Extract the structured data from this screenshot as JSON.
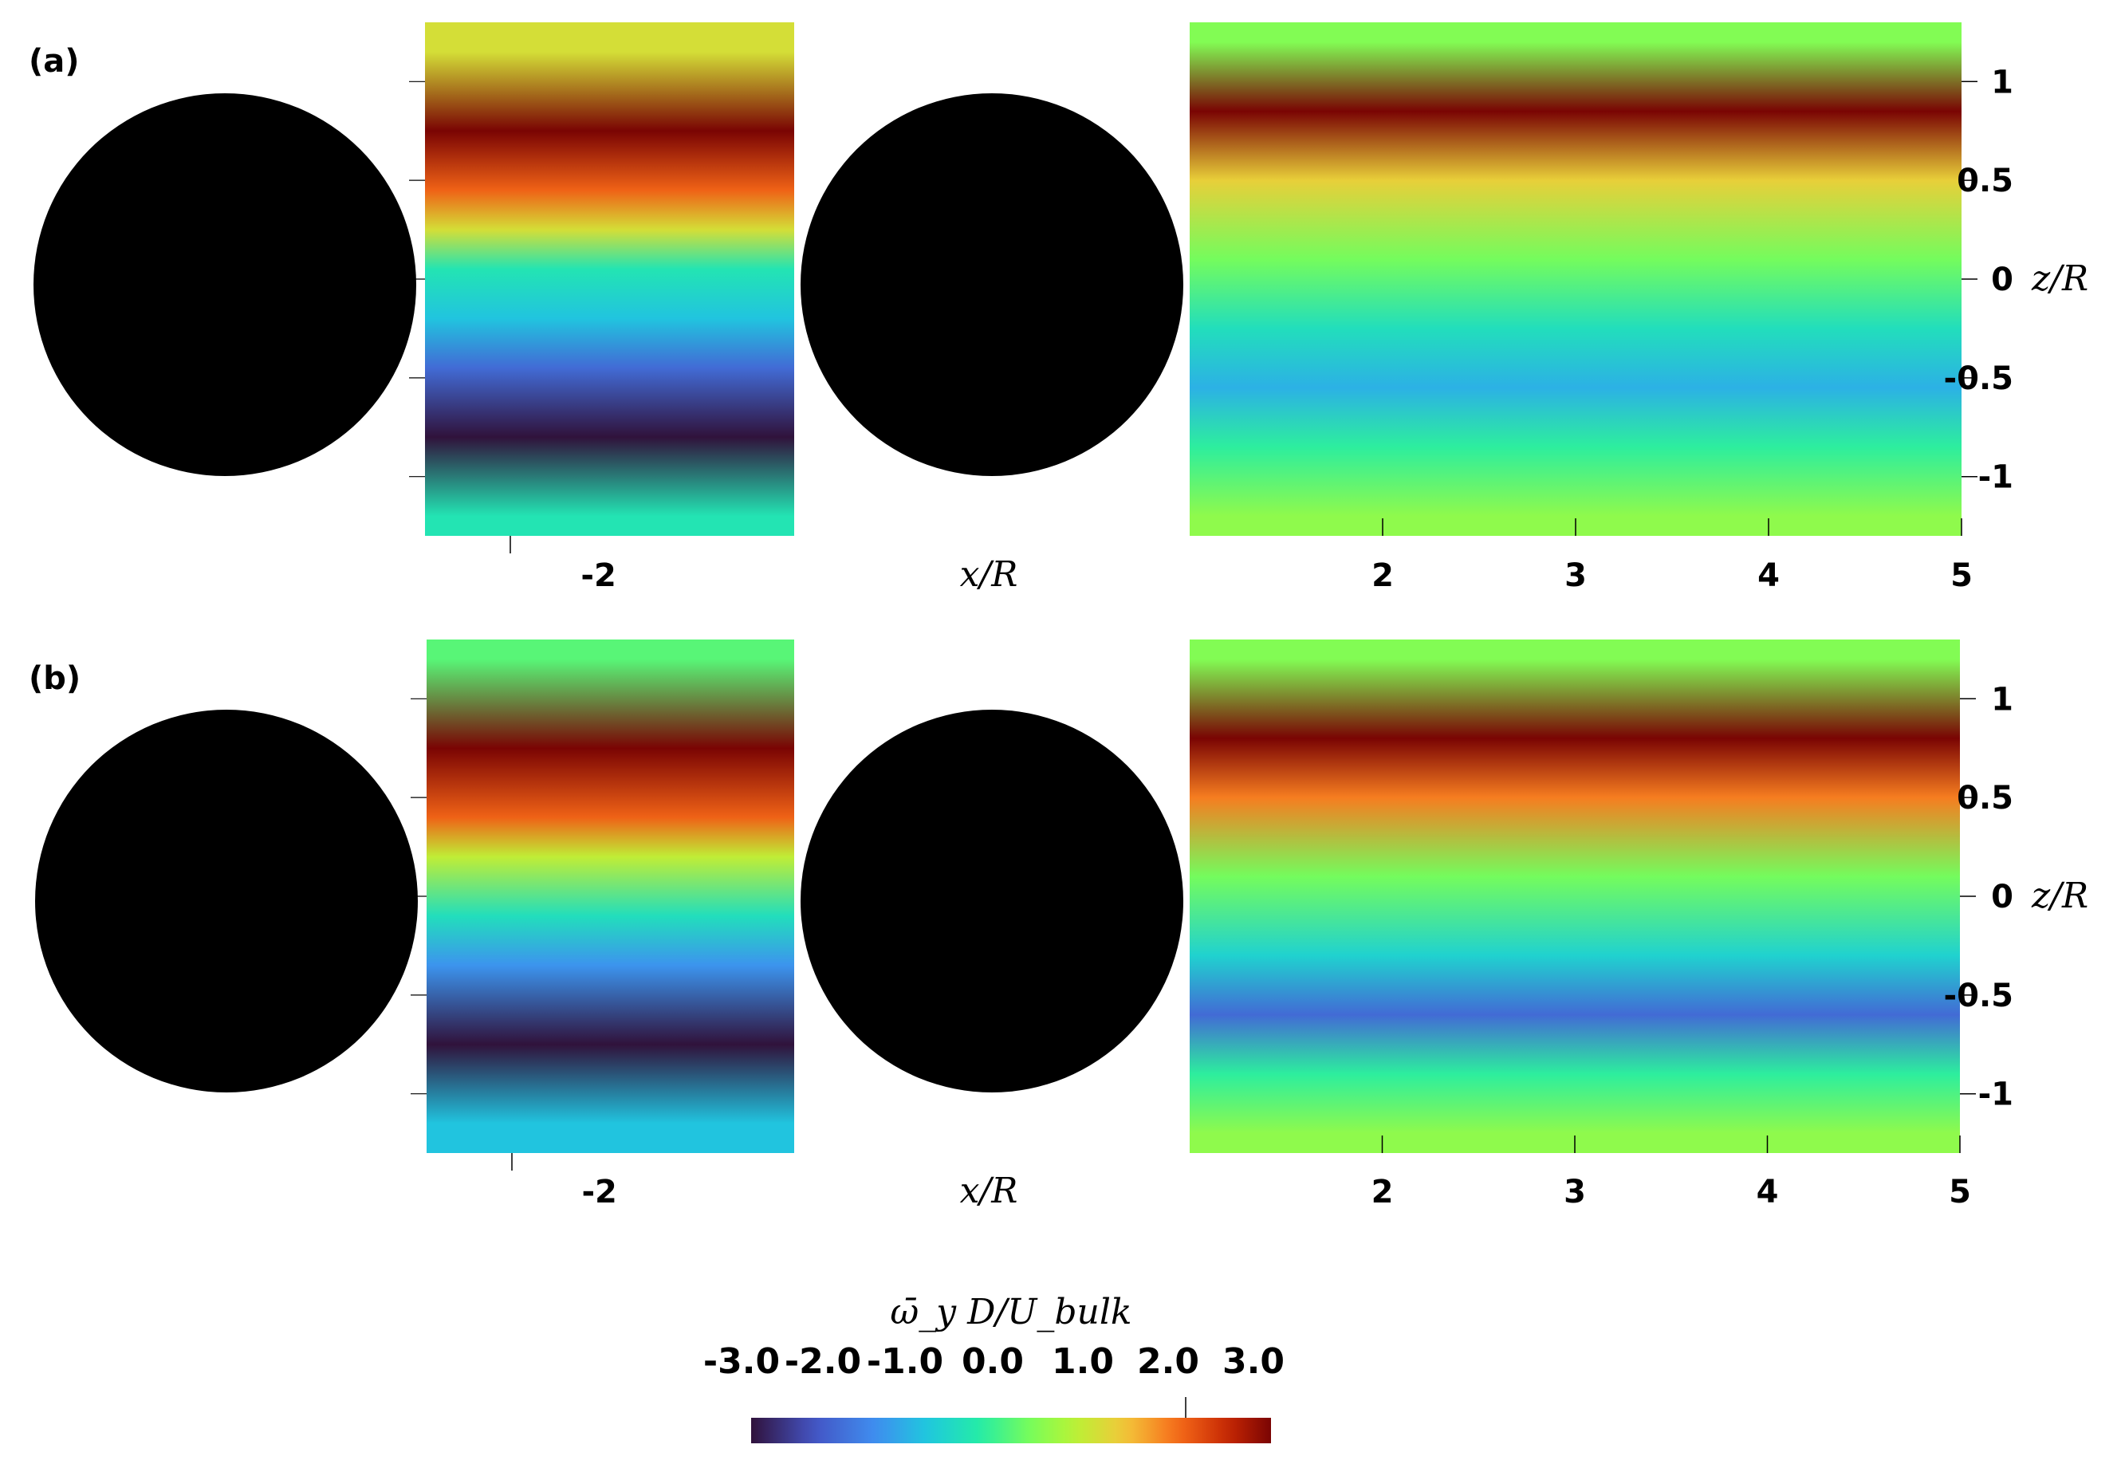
{
  "chart_data": {
    "type": "heatmap",
    "panels": [
      {
        "label": "(a)",
        "xlabel": "x/R",
        "ylabel": "z/R",
        "upstream_xticks": [
          "-2"
        ],
        "downstream_xticks": [
          "2",
          "3",
          "4",
          "5"
        ],
        "downstream_xlim": [
          1.0,
          5.0
        ],
        "zticks": [
          "1",
          "0.5",
          "0",
          "-0.5",
          "-1"
        ],
        "zlim": [
          -1.3,
          1.3
        ],
        "upstream_bands": [
          {
            "z": 1.15,
            "value": 1.0
          },
          {
            "z": 0.75,
            "value": 3.0
          },
          {
            "z": 0.45,
            "value": 2.0
          },
          {
            "z": 0.25,
            "value": 1.0
          },
          {
            "z": 0.05,
            "value": -0.5
          },
          {
            "z": -0.2,
            "value": -1.0
          },
          {
            "z": -0.45,
            "value": -2.0
          },
          {
            "z": -0.8,
            "value": -3.0
          },
          {
            "z": -1.2,
            "value": -0.5
          }
        ],
        "downstream_bands": [
          {
            "z": 1.2,
            "value": 0.3
          },
          {
            "z": 0.85,
            "value": 3.0
          },
          {
            "z": 0.5,
            "value": 1.2
          },
          {
            "z": 0.1,
            "value": 0.2
          },
          {
            "z": -0.25,
            "value": -0.6
          },
          {
            "z": -0.55,
            "value": -1.2
          },
          {
            "z": -0.85,
            "value": -0.3
          },
          {
            "z": -1.2,
            "value": 0.4
          }
        ]
      },
      {
        "label": "(b)",
        "xlabel": "x/R",
        "ylabel": "z/R",
        "upstream_xticks": [
          "-2"
        ],
        "downstream_xticks": [
          "2",
          "3",
          "4",
          "5"
        ],
        "downstream_xlim": [
          1.0,
          5.0
        ],
        "zticks": [
          "1",
          "0.5",
          "0",
          "-0.5",
          "-1"
        ],
        "zlim": [
          -1.3,
          1.3
        ],
        "upstream_bands": [
          {
            "z": 1.2,
            "value": 0.0
          },
          {
            "z": 0.75,
            "value": 3.0
          },
          {
            "z": 0.4,
            "value": 2.0
          },
          {
            "z": 0.2,
            "value": 0.8
          },
          {
            "z": -0.1,
            "value": -0.6
          },
          {
            "z": -0.35,
            "value": -1.5
          },
          {
            "z": -0.75,
            "value": -3.0
          },
          {
            "z": -1.15,
            "value": -1.0
          }
        ],
        "downstream_bands": [
          {
            "z": 1.2,
            "value": 0.3
          },
          {
            "z": 0.8,
            "value": 3.0
          },
          {
            "z": 0.5,
            "value": 1.8
          },
          {
            "z": 0.1,
            "value": 0.2
          },
          {
            "z": -0.3,
            "value": -0.8
          },
          {
            "z": -0.6,
            "value": -2.0
          },
          {
            "z": -0.9,
            "value": -0.3
          },
          {
            "z": -1.2,
            "value": 0.4
          }
        ]
      }
    ],
    "colorbar": {
      "title": "ω̄_y D/U_bulk",
      "ticks": [
        "-3.0",
        "-2.0",
        "-1.0",
        "0.0",
        "1.0",
        "2.0",
        "3.0"
      ],
      "range": [
        -3.0,
        3.0
      ],
      "colormap": "turbo"
    }
  },
  "colors": {
    "body": "#000000",
    "background": "#ffffff"
  }
}
